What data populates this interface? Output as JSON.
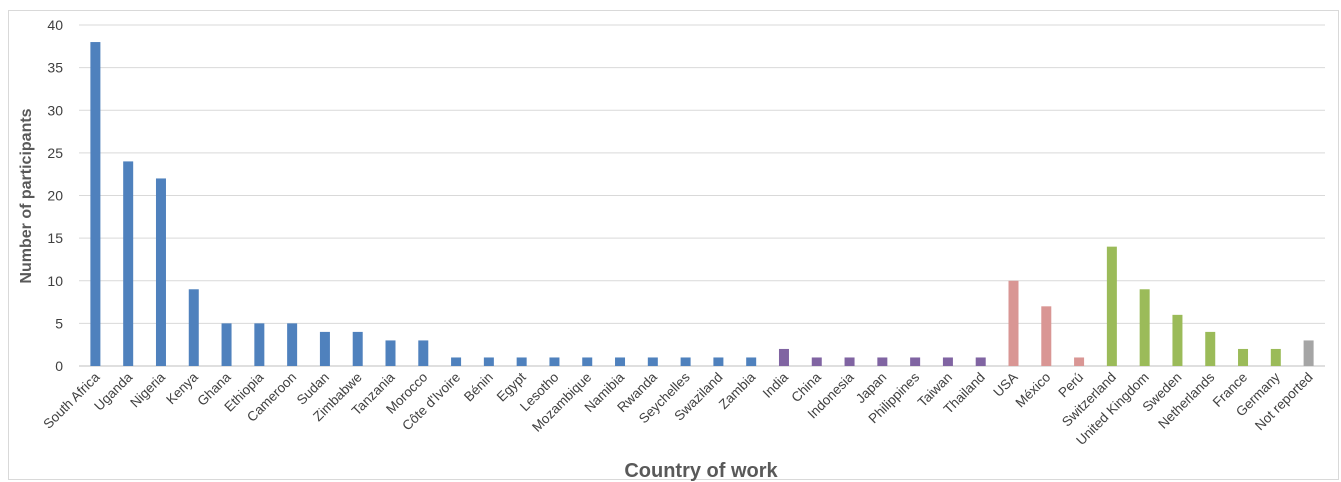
{
  "chart_data": {
    "type": "bar",
    "title": "",
    "xlabel": "Country of work",
    "ylabel": "Number of participants",
    "ylim": [
      0,
      40
    ],
    "yticks": [
      0,
      5,
      10,
      15,
      20,
      25,
      30,
      35,
      40
    ],
    "grid": true,
    "legend": "none",
    "categories": [
      "South Africa",
      "Uganda",
      "Nigeria",
      "Kenya",
      "Ghana",
      "Ethiopia",
      "Cameroon",
      "Sudan",
      "Zimbabwe",
      "Tanzania",
      "Morocco",
      "Côte d'Ivoire",
      "Bénin",
      "Egypt",
      "Lesotho",
      "Mozambique",
      "Namibia",
      "Rwanda",
      "Seychelles",
      "Swaziland",
      "Zambia",
      "India",
      "China",
      "Indonesia",
      "Japan",
      "Philippines",
      "Taiwan",
      "Thailand",
      "USA",
      "México",
      "Perú",
      "Switzerland",
      "United Kingdom",
      "Sweden",
      "Netherlands",
      "France",
      "Germany",
      "Not reported"
    ],
    "values": [
      38,
      24,
      22,
      9,
      5,
      5,
      5,
      4,
      4,
      3,
      3,
      1,
      1,
      1,
      1,
      1,
      1,
      1,
      1,
      1,
      1,
      2,
      1,
      1,
      1,
      1,
      1,
      1,
      10,
      7,
      1,
      14,
      9,
      6,
      4,
      2,
      2,
      3
    ],
    "bar_colors": [
      "#4f81bd",
      "#4f81bd",
      "#4f81bd",
      "#4f81bd",
      "#4f81bd",
      "#4f81bd",
      "#4f81bd",
      "#4f81bd",
      "#4f81bd",
      "#4f81bd",
      "#4f81bd",
      "#4f81bd",
      "#4f81bd",
      "#4f81bd",
      "#4f81bd",
      "#4f81bd",
      "#4f81bd",
      "#4f81bd",
      "#4f81bd",
      "#4f81bd",
      "#4f81bd",
      "#8064a2",
      "#8064a2",
      "#8064a2",
      "#8064a2",
      "#8064a2",
      "#8064a2",
      "#8064a2",
      "#d99694",
      "#d99694",
      "#d99694",
      "#9bbb59",
      "#9bbb59",
      "#9bbb59",
      "#9bbb59",
      "#9bbb59",
      "#9bbb59",
      "#a5a5a5"
    ],
    "gridline_color": "#d9d9d9",
    "axis_color": "#bfbfbf"
  }
}
